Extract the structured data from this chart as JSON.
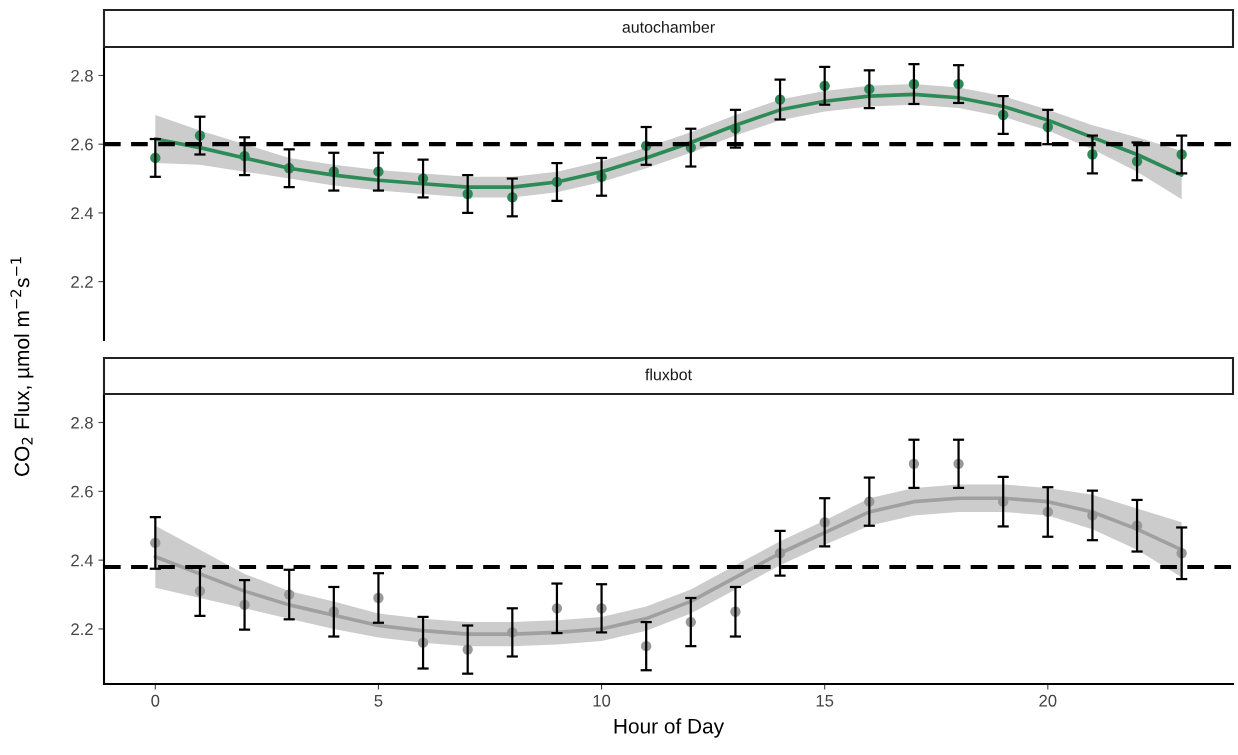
{
  "chart_data": [
    {
      "type": "line",
      "title": "autochamber",
      "ylabel": "CO$_{2}$ Flux, µmol m$^{−2}$s$^{−1}$",
      "x": [
        0,
        1,
        2,
        3,
        4,
        5,
        6,
        7,
        8,
        9,
        10,
        11,
        12,
        13,
        14,
        15,
        16,
        17,
        18,
        19,
        20,
        21,
        22,
        23
      ],
      "xlim": [
        -1.15,
        24.15
      ],
      "ylim": [
        2.03,
        2.88
      ],
      "yticks": [
        2.2,
        2.4,
        2.6,
        2.8
      ],
      "xticks": [
        0,
        5,
        10,
        15,
        20
      ],
      "tick_labels": "y",
      "grid": false,
      "series": [
        {
          "color": "#2e8b57",
          "values": [
            2.615,
            2.59,
            2.56,
            2.53,
            2.51,
            2.495,
            2.485,
            2.475,
            2.475,
            2.49,
            2.52,
            2.56,
            2.605,
            2.655,
            2.7,
            2.725,
            2.74,
            2.745,
            2.735,
            2.71,
            2.67,
            2.62,
            2.57,
            2.51
          ],
          "lower": [
            2.545,
            2.54,
            2.52,
            2.5,
            2.48,
            2.465,
            2.455,
            2.445,
            2.445,
            2.46,
            2.49,
            2.53,
            2.575,
            2.625,
            2.67,
            2.695,
            2.71,
            2.715,
            2.705,
            2.68,
            2.64,
            2.585,
            2.52,
            2.44
          ],
          "upper": [
            2.685,
            2.64,
            2.6,
            2.56,
            2.54,
            2.525,
            2.515,
            2.505,
            2.505,
            2.52,
            2.55,
            2.59,
            2.635,
            2.685,
            2.73,
            2.755,
            2.77,
            2.775,
            2.765,
            2.74,
            2.7,
            2.655,
            2.62,
            2.58
          ]
        },
        {
          "type": "scatter",
          "marker": "circle",
          "color": "#2e8b57",
          "values": [
            2.56,
            2.625,
            2.565,
            2.53,
            2.52,
            2.52,
            2.5,
            2.455,
            2.445,
            2.49,
            2.505,
            2.595,
            2.59,
            2.645,
            2.73,
            2.77,
            2.76,
            2.775,
            2.775,
            2.685,
            2.65,
            2.57,
            2.55,
            2.57
          ],
          "errors": [
            0.055,
            0.055,
            0.055,
            0.055,
            0.055,
            0.055,
            0.055,
            0.055,
            0.055,
            0.055,
            0.055,
            0.055,
            0.055,
            0.055,
            0.058,
            0.055,
            0.055,
            0.058,
            0.055,
            0.055,
            0.05,
            0.055,
            0.055,
            0.055
          ]
        }
      ],
      "ref_lines": [
        {
          "axis": "y",
          "value": 2.6,
          "color": "#000000",
          "line_style": "dashed"
        }
      ]
    },
    {
      "type": "line",
      "title": "fluxbot",
      "xlabel": "Hour of Day",
      "x": [
        0,
        1,
        2,
        3,
        4,
        5,
        6,
        7,
        8,
        9,
        10,
        11,
        12,
        13,
        14,
        15,
        16,
        17,
        18,
        19,
        20,
        21,
        22,
        23
      ],
      "xlim": [
        -1.15,
        24.15
      ],
      "ylim": [
        2.04,
        2.88
      ],
      "yticks": [
        2.2,
        2.4,
        2.6,
        2.8
      ],
      "xticks": [
        0,
        5,
        10,
        15,
        20
      ],
      "grid": false,
      "series": [
        {
          "color": "#a0a0a0",
          "values": [
            2.41,
            2.36,
            2.31,
            2.27,
            2.24,
            2.21,
            2.195,
            2.185,
            2.185,
            2.19,
            2.2,
            2.23,
            2.28,
            2.35,
            2.42,
            2.48,
            2.54,
            2.57,
            2.58,
            2.58,
            2.57,
            2.54,
            2.49,
            2.43
          ],
          "lower": [
            2.32,
            2.29,
            2.26,
            2.23,
            2.2,
            2.175,
            2.16,
            2.15,
            2.15,
            2.155,
            2.165,
            2.195,
            2.245,
            2.315,
            2.385,
            2.445,
            2.5,
            2.53,
            2.54,
            2.54,
            2.53,
            2.49,
            2.43,
            2.35
          ],
          "upper": [
            2.5,
            2.43,
            2.36,
            2.31,
            2.28,
            2.245,
            2.23,
            2.22,
            2.22,
            2.225,
            2.235,
            2.265,
            2.315,
            2.385,
            2.455,
            2.515,
            2.58,
            2.61,
            2.62,
            2.62,
            2.61,
            2.59,
            2.55,
            2.51
          ]
        },
        {
          "type": "scatter",
          "marker": "circle",
          "color": "#999999",
          "values": [
            2.45,
            2.31,
            2.27,
            2.3,
            2.25,
            2.29,
            2.16,
            2.14,
            2.19,
            2.26,
            2.26,
            2.15,
            2.22,
            2.25,
            2.42,
            2.51,
            2.57,
            2.68,
            2.68,
            2.57,
            2.54,
            2.53,
            2.5,
            2.42
          ],
          "errors": [
            0.075,
            0.072,
            0.072,
            0.072,
            0.072,
            0.072,
            0.075,
            0.07,
            0.07,
            0.072,
            0.07,
            0.07,
            0.07,
            0.072,
            0.065,
            0.07,
            0.07,
            0.07,
            0.07,
            0.072,
            0.072,
            0.072,
            0.075,
            0.075
          ]
        }
      ],
      "ref_lines": [
        {
          "axis": "y",
          "value": 2.38,
          "color": "#000000",
          "line_style": "dashed"
        }
      ]
    }
  ]
}
